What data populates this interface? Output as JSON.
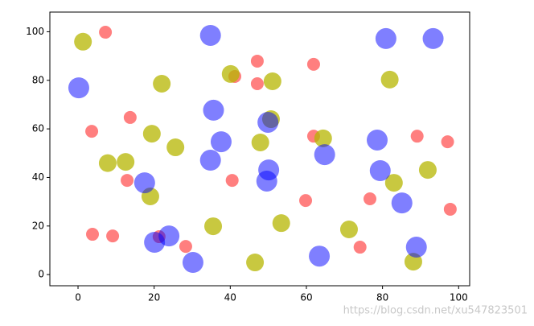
{
  "chart_data": {
    "type": "scatter",
    "xlim": [
      -7.4,
      102.9
    ],
    "ylim": [
      -4.6,
      108.1
    ],
    "xticks": [
      0,
      20,
      40,
      60,
      80,
      100
    ],
    "yticks": [
      0,
      20,
      40,
      60,
      80,
      100
    ],
    "grid": false,
    "series": [
      {
        "color": "#ff0000",
        "opacity": 0.5,
        "size": 8,
        "x": [
          7.2,
          47.1,
          61.9,
          41.2,
          47.1,
          3.6,
          13.7,
          89.1,
          97.1,
          61.9,
          12.9,
          40.5,
          59.8,
          76.7,
          97.8,
          3.8,
          9.1,
          21.3,
          28.3,
          74.1
        ],
        "values": [
          99.8,
          87.9,
          86.6,
          81.6,
          78.6,
          59.0,
          64.7,
          57.0,
          54.7,
          57.0,
          38.8,
          38.8,
          30.5,
          31.2,
          26.9,
          16.6,
          15.9,
          15.6,
          11.6,
          11.3
        ]
      },
      {
        "color": "#b5b500",
        "opacity": 0.75,
        "size": 11,
        "x": [
          1.3,
          40.1,
          22.0,
          51.1,
          81.9,
          50.7,
          64.4,
          19.4,
          25.6,
          47.9,
          7.8,
          12.5,
          91.9,
          83.0,
          19.0,
          35.5,
          53.4,
          71.2,
          46.5,
          88.1
        ],
        "values": [
          95.9,
          82.6,
          78.6,
          79.6,
          80.3,
          64.0,
          56.1,
          58.0,
          52.4,
          54.4,
          45.9,
          46.4,
          43.1,
          37.8,
          32.2,
          19.9,
          21.2,
          18.6,
          5.0,
          5.3
        ]
      },
      {
        "color": "#0000ff",
        "opacity": 0.5,
        "size": 13,
        "x": [
          34.8,
          80.9,
          93.3,
          0.2,
          35.6,
          49.9,
          37.6,
          78.6,
          64.8,
          34.8,
          50.1,
          79.4,
          49.6,
          17.5,
          85.1,
          23.9,
          20.1,
          30.2,
          63.4,
          88.9
        ],
        "values": [
          98.5,
          97.2,
          97.2,
          76.9,
          67.7,
          62.7,
          54.7,
          55.4,
          49.4,
          47.1,
          43.1,
          42.8,
          38.5,
          37.8,
          29.5,
          15.9,
          13.3,
          5.0,
          7.6,
          11.3
        ]
      }
    ]
  },
  "watermark": "https://blog.csdn.net/xu547823501"
}
